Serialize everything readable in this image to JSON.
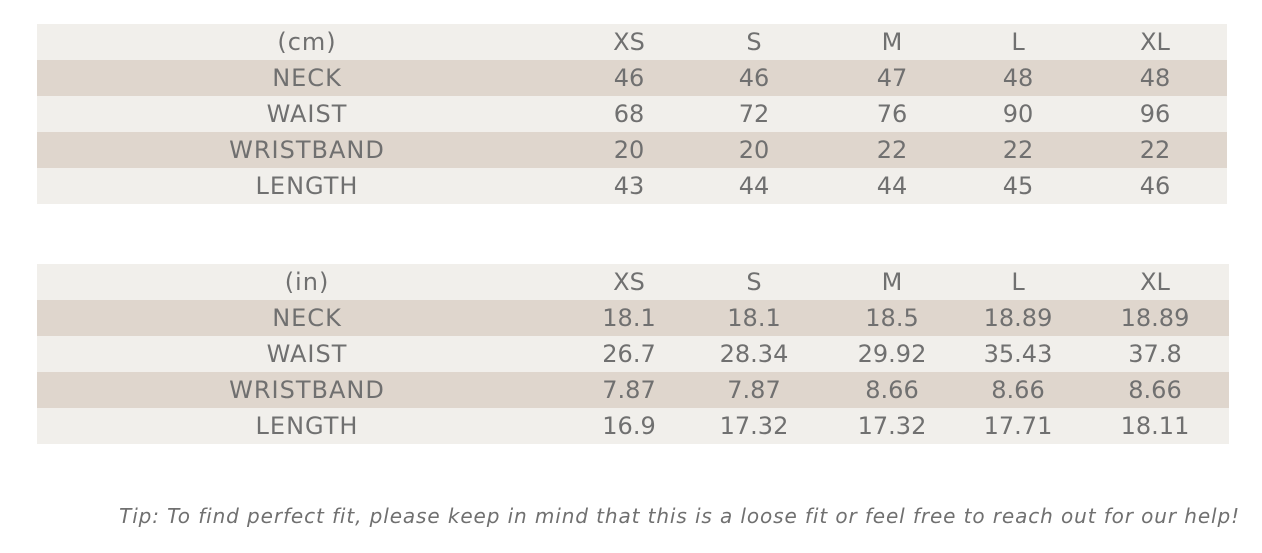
{
  "colors": {
    "row_light": "#f1efeb",
    "row_dark": "#dfd6cd",
    "text": "#707070"
  },
  "tables": [
    {
      "unit": "(cm)",
      "sizes": [
        "XS",
        "S",
        "M",
        "L",
        "XL"
      ],
      "rows": [
        {
          "label": "NECK",
          "values": [
            "46",
            "46",
            "47",
            "48",
            "48"
          ]
        },
        {
          "label": "WAIST",
          "values": [
            "68",
            "72",
            "76",
            "90",
            "96"
          ]
        },
        {
          "label": "WRISTBAND",
          "values": [
            "20",
            "20",
            "22",
            "22",
            "22"
          ]
        },
        {
          "label": "LENGTH",
          "values": [
            "43",
            "44",
            "44",
            "45",
            "46"
          ]
        }
      ]
    },
    {
      "unit": "(in)",
      "sizes": [
        "XS",
        "S",
        "M",
        "L",
        "XL"
      ],
      "rows": [
        {
          "label": "NECK",
          "values": [
            "18.1",
            "18.1",
            "18.5",
            "18.89",
            "18.89"
          ]
        },
        {
          "label": "WAIST",
          "values": [
            "26.7",
            "28.34",
            "29.92",
            "35.43",
            "37.8"
          ]
        },
        {
          "label": "WRISTBAND",
          "values": [
            "7.87",
            "7.87",
            "8.66",
            "8.66",
            "8.66"
          ]
        },
        {
          "label": "LENGTH",
          "values": [
            "16.9",
            "17.32",
            "17.32",
            "17.71",
            "18.11"
          ]
        }
      ]
    }
  ],
  "tip": "Tip: To find perfect fit, please keep in mind that this is a loose fit or feel free to reach out for our help!"
}
